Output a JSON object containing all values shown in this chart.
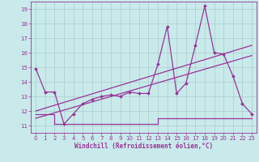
{
  "xlabel": "Windchill (Refroidissement éolien,°C)",
  "bg_color": "#c8eaea",
  "line_color": "#993399",
  "grid_color": "#aacccc",
  "x": [
    0,
    1,
    2,
    3,
    4,
    5,
    6,
    7,
    8,
    9,
    10,
    11,
    12,
    13,
    14,
    15,
    16,
    17,
    18,
    19,
    20,
    21,
    22,
    23
  ],
  "y_main": [
    14.9,
    13.3,
    13.3,
    11.1,
    11.8,
    12.5,
    12.8,
    13.0,
    13.1,
    13.0,
    13.3,
    13.2,
    13.2,
    15.2,
    17.8,
    13.2,
    13.9,
    16.5,
    19.2,
    16.0,
    15.9,
    14.4,
    12.5,
    11.8
  ],
  "y_step": [
    11.8,
    11.8,
    11.1,
    11.1,
    11.1,
    11.1,
    11.1,
    11.1,
    11.1,
    11.1,
    11.1,
    11.1,
    11.1,
    11.5,
    11.5,
    11.5,
    11.5,
    11.5,
    11.5,
    11.5,
    11.5,
    11.5,
    11.5,
    11.5
  ],
  "trend1_x": [
    0,
    23
  ],
  "trend1_y": [
    12.0,
    16.5
  ],
  "trend2_x": [
    0,
    23
  ],
  "trend2_y": [
    11.5,
    15.8
  ],
  "ylim": [
    10.5,
    19.5
  ],
  "xlim": [
    -0.5,
    23.5
  ],
  "yticks": [
    11,
    12,
    13,
    14,
    15,
    16,
    17,
    18,
    19
  ],
  "xticks": [
    0,
    1,
    2,
    3,
    4,
    5,
    6,
    7,
    8,
    9,
    10,
    11,
    12,
    13,
    14,
    15,
    16,
    17,
    18,
    19,
    20,
    21,
    22,
    23
  ],
  "tick_fontsize": 5.0,
  "xlabel_fontsize": 5.5
}
